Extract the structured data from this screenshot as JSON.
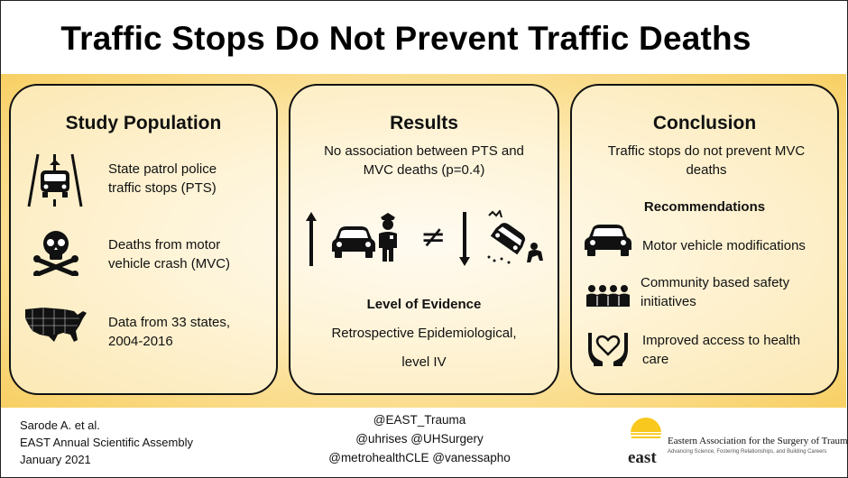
{
  "title": "Traffic Stops Do Not Prevent Traffic Deaths",
  "study_population": {
    "heading": "Study Population",
    "items": [
      {
        "icon": "police-car-road-icon",
        "text": "State patrol police traffic stops (PTS)"
      },
      {
        "icon": "skull-crossbones-icon",
        "text": "Deaths from motor vehicle crash (MVC)"
      },
      {
        "icon": "us-map-icon",
        "text": "Data from 33 states, 2004-2016"
      }
    ]
  },
  "results": {
    "heading": "Results",
    "finding": "No association between PTS and MVC deaths (p=0.4)",
    "icons": [
      "up-arrow-icon",
      "car-icon",
      "police-officer-icon",
      "not-equal-icon",
      "down-arrow-icon",
      "crashed-car-icon"
    ],
    "evidence_heading": "Level of Evidence",
    "evidence_line1": "Retrospective Epidemiological,",
    "evidence_line2": "level IV"
  },
  "conclusion": {
    "heading": "Conclusion",
    "statement": "Traffic stops do not prevent MVC deaths",
    "recommendations_heading": "Recommendations",
    "recommendations": [
      {
        "icon": "car-icon",
        "text": "Motor vehicle modifications"
      },
      {
        "icon": "community-icon",
        "text": "Community based safety initiatives"
      },
      {
        "icon": "heart-hands-icon",
        "text": "Improved access to health care"
      }
    ]
  },
  "footer": {
    "author": "Sarode A. et al.",
    "venue": "EAST Annual Scientific Assembly",
    "date": "January 2021",
    "handles": [
      "@EAST_Trauma",
      "@uhrises @UHSurgery",
      "@metrohealthCLE @vanessapho"
    ]
  },
  "logo": {
    "word": "east",
    "org": "Eastern Association for the Surgery of Trauma",
    "tagline": "Advancing Science, Fostering Relationships, and Building Careers"
  },
  "colors": {
    "band_outer": "#f7cf63",
    "band_inner": "#fffaf0",
    "sun": "#f9c81e"
  }
}
